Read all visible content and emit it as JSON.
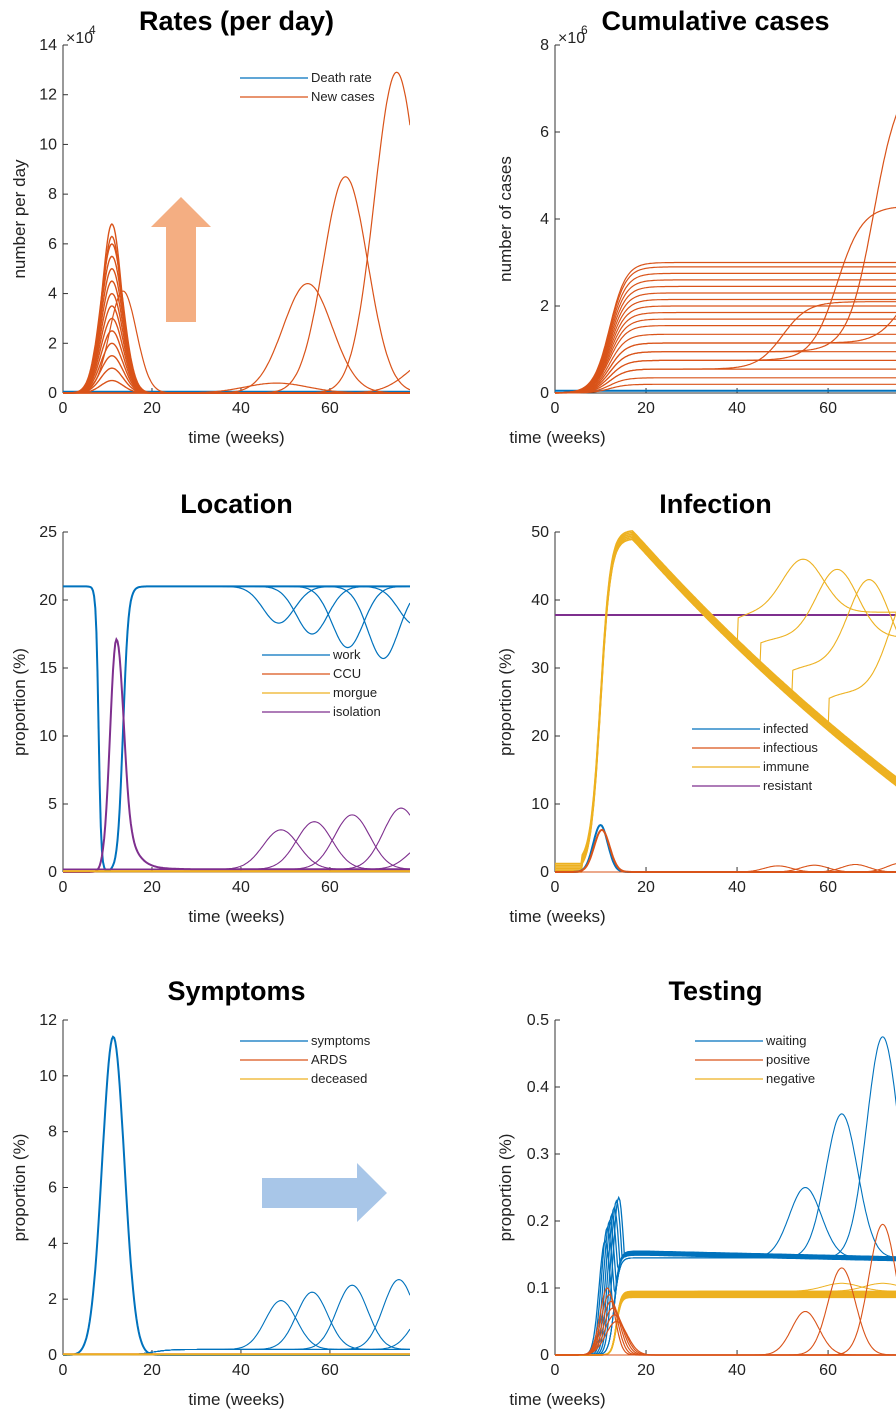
{
  "colors": {
    "blue": "#0072BD",
    "orange": "#D95319",
    "yellow": "#EDB120",
    "purple": "#7E2F8E",
    "up_arrow": "#F4AE82",
    "right_arrow": "#A8C6E8"
  },
  "chart_data": [
    {
      "type": "line",
      "title": "Rates (per day)",
      "xlabel": "time (weeks)",
      "ylabel": "number per day",
      "y_multiplier": "×10",
      "y_multiplier_exp": "4",
      "xlim": [
        0,
        78
      ],
      "ylim": [
        0,
        14
      ],
      "xticks": [
        "0",
        "20",
        "40",
        "60"
      ],
      "yticks": [
        "0",
        "2",
        "4",
        "6",
        "8",
        "10",
        "12",
        "14"
      ],
      "legend": [
        {
          "label": "Death rate",
          "color": "blue"
        },
        {
          "label": "New cases",
          "color": "orange"
        }
      ],
      "legend_position": "top-right",
      "annotation": "up-arrow",
      "series": [
        {
          "color": "blue",
          "kind": "flat",
          "level": 0.05,
          "count": 1
        },
        {
          "color": "orange",
          "kind": "first_wave",
          "peak_week": 11,
          "peak_levels": [
            0.5,
            1.0,
            1.5,
            2.0,
            2.5,
            3.0,
            3.5,
            4.0,
            4.5,
            5.0,
            5.5,
            6.0,
            6.3,
            6.8
          ],
          "width_weeks": 2.2
        },
        {
          "color": "orange",
          "kind": "shoulder",
          "peak_week": 13.5,
          "peak": 4.1,
          "width_weeks": 3
        },
        {
          "color": "orange",
          "kind": "second_wave",
          "peaks": [
            {
              "week": 48,
              "value": 0.4,
              "width": 7
            },
            {
              "week": 55,
              "value": 4.4,
              "width": 5.5
            },
            {
              "week": 63.5,
              "value": 8.7,
              "width": 5
            },
            {
              "week": 75,
              "value": 12.9,
              "width": 5
            },
            {
              "week": 84,
              "value": 1.5,
              "width": 6
            }
          ]
        }
      ]
    },
    {
      "type": "line",
      "title": "Cumulative cases",
      "xlabel": "time (weeks)",
      "ylabel": "number of cases",
      "y_multiplier": "×10",
      "y_multiplier_exp": "6",
      "xlim": [
        0,
        78
      ],
      "ylim": [
        0,
        8
      ],
      "xticks": [
        "0",
        "20",
        "40",
        "60"
      ],
      "yticks": [
        "0",
        "2",
        "4",
        "6",
        "8"
      ],
      "series": [
        {
          "color": "blue",
          "kind": "flat",
          "level": 0.05,
          "count": 1
        },
        {
          "color": "orange",
          "kind": "cumulative",
          "plateaus": [
            0.2,
            0.35,
            0.55,
            0.75,
            0.95,
            1.15,
            1.35,
            1.55,
            1.7,
            1.85,
            2.0,
            2.15,
            2.3,
            2.45,
            2.6,
            2.75,
            2.9,
            3.0
          ],
          "rise_week": 12
        },
        {
          "color": "orange",
          "kind": "cumulative_second",
          "waves": [
            {
              "base": 0.55,
              "final": 2.1,
              "week": 50
            },
            {
              "base": 0.75,
              "final": 4.3,
              "week": 62
            },
            {
              "base": 0.95,
              "final": 7.3,
              "week": 70
            },
            {
              "base": 1.15,
              "final": 2.7,
              "week": 76
            }
          ]
        }
      ]
    },
    {
      "type": "line",
      "title": "Location",
      "xlabel": "time (weeks)",
      "ylabel": "proportion (%)",
      "xlim": [
        0,
        78
      ],
      "ylim": [
        0,
        25
      ],
      "xticks": [
        "0",
        "20",
        "40",
        "60"
      ],
      "yticks": [
        "0",
        "5",
        "10",
        "15",
        "20",
        "25"
      ],
      "legend": [
        {
          "label": "work",
          "color": "blue"
        },
        {
          "label": "CCU",
          "color": "orange"
        },
        {
          "label": "morgue",
          "color": "yellow"
        },
        {
          "label": "isolation",
          "color": "purple"
        }
      ],
      "legend_position": "center-right",
      "series": [
        {
          "color": "blue",
          "kind": "work",
          "level": 21,
          "drop_start": 8,
          "drop_end": 13.5,
          "dips": [
            {
              "week": 48.5,
              "depth": 2.7
            },
            {
              "week": 56,
              "depth": 3.5
            },
            {
              "week": 64,
              "depth": 4.5
            },
            {
              "week": 72,
              "depth": 5.3
            },
            {
              "week": 79,
              "depth": 2.8
            }
          ]
        },
        {
          "color": "purple",
          "kind": "isolation",
          "peak_week": 12,
          "peak": 17.1,
          "baseline": 0.2,
          "bumps": [
            {
              "week": 49,
              "value": 2.9
            },
            {
              "week": 56.5,
              "value": 3.5
            },
            {
              "week": 65,
              "value": 4.0
            },
            {
              "week": 76,
              "value": 4.5
            },
            {
              "week": 82,
              "value": 2.0
            }
          ]
        },
        {
          "color": "orange",
          "kind": "flat",
          "level": 0.05,
          "count": 1
        },
        {
          "color": "yellow",
          "kind": "flat",
          "level": 0.05,
          "count": 1
        }
      ]
    },
    {
      "type": "line",
      "title": "Infection",
      "xlabel": "time (weeks)",
      "ylabel": "proportion (%)",
      "xlim": [
        0,
        78
      ],
      "ylim": [
        0,
        50
      ],
      "xticks": [
        "0",
        "20",
        "40",
        "60"
      ],
      "yticks": [
        "0",
        "10",
        "20",
        "30",
        "40",
        "50"
      ],
      "legend": [
        {
          "label": "infected",
          "color": "blue"
        },
        {
          "label": "infectious",
          "color": "orange"
        },
        {
          "label": "immune",
          "color": "yellow"
        },
        {
          "label": "resistant",
          "color": "purple"
        }
      ],
      "legend_position": "bottom-center",
      "series": [
        {
          "color": "purple",
          "kind": "flat",
          "level": 37.8,
          "count": 1
        },
        {
          "color": "yellow",
          "kind": "immune",
          "peak_week": 17,
          "peak": 49,
          "decay_to": 15,
          "rebounds": [
            {
              "start": 40,
              "min": 38.2,
              "peak_week": 54.5,
              "peak": 46
            },
            {
              "start": 45,
              "min": 34.5,
              "peak_week": 62,
              "peak": 44.5
            },
            {
              "start": 52,
              "min": 30.5,
              "peak_week": 69,
              "peak": 43
            },
            {
              "start": 60,
              "min": 26.5,
              "peak_week": 78,
              "peak": 41
            }
          ]
        },
        {
          "color": "blue",
          "kind": "peak",
          "week": 10,
          "value": 6.9,
          "width": 1.6
        },
        {
          "color": "orange",
          "kind": "peak",
          "week": 10.3,
          "value": 6.2,
          "width": 1.7
        },
        {
          "color": "orange",
          "kind": "small_waves",
          "values": [
            0.9,
            1.0,
            1.1,
            1.3
          ],
          "weeks": [
            49,
            57,
            66,
            76
          ]
        }
      ]
    },
    {
      "type": "line",
      "title": "Symptoms",
      "xlabel": "time (weeks)",
      "ylabel": "proportion (%)",
      "xlim": [
        0,
        78
      ],
      "ylim": [
        0,
        12
      ],
      "xticks": [
        "0",
        "20",
        "40",
        "60"
      ],
      "yticks": [
        "0",
        "2",
        "4",
        "6",
        "8",
        "10",
        "12"
      ],
      "legend": [
        {
          "label": "symptoms",
          "color": "blue"
        },
        {
          "label": "ARDS",
          "color": "orange"
        },
        {
          "label": "deceased",
          "color": "yellow"
        }
      ],
      "legend_position": "top-right",
      "annotation": "right-arrow",
      "series": [
        {
          "color": "blue",
          "kind": "peak",
          "week": 11.3,
          "value": 11.4,
          "width": 2.5
        },
        {
          "color": "blue",
          "kind": "waves",
          "baseline": 0.2,
          "peaks": [
            {
              "week": 49,
              "value": 1.75
            },
            {
              "week": 56,
              "value": 2.05
            },
            {
              "week": 65,
              "value": 2.3
            },
            {
              "week": 75.5,
              "value": 2.5
            },
            {
              "week": 82,
              "value": 1.4
            }
          ]
        },
        {
          "color": "orange",
          "kind": "flat",
          "level": 0.03,
          "count": 1
        },
        {
          "color": "yellow",
          "kind": "flat",
          "level": 0.02,
          "count": 1
        }
      ]
    },
    {
      "type": "line",
      "title": "Testing",
      "xlabel": "time (weeks)",
      "ylabel": "proportion (%)",
      "xlim": [
        0,
        78
      ],
      "ylim": [
        0,
        0.5
      ],
      "xticks": [
        "0",
        "20",
        "40",
        "60"
      ],
      "yticks": [
        "0",
        "0.1",
        "0.2",
        "0.3",
        "0.4",
        "0.5"
      ],
      "legend": [
        {
          "label": "waiting",
          "color": "blue"
        },
        {
          "label": "positive",
          "color": "orange"
        },
        {
          "label": "negative",
          "color": "yellow"
        }
      ],
      "legend_position": "top-right",
      "series": [
        {
          "color": "blue",
          "kind": "testing_waiting",
          "plateau": 0.145,
          "first_peaks": [
            0.17,
            0.19,
            0.2,
            0.21,
            0.22,
            0.23,
            0.235
          ],
          "waves": [
            {
              "week": 55,
              "value": 0.25
            },
            {
              "week": 63,
              "value": 0.36
            },
            {
              "week": 72,
              "value": 0.475
            }
          ]
        },
        {
          "color": "yellow",
          "kind": "testing_negative",
          "plateau": 0.095,
          "count": 10
        },
        {
          "color": "orange",
          "kind": "testing_positive",
          "first_peak": 0.1,
          "waves": [
            {
              "week": 55,
              "value": 0.065
            },
            {
              "week": 63,
              "value": 0.13
            },
            {
              "week": 72,
              "value": 0.195
            }
          ]
        }
      ]
    }
  ]
}
